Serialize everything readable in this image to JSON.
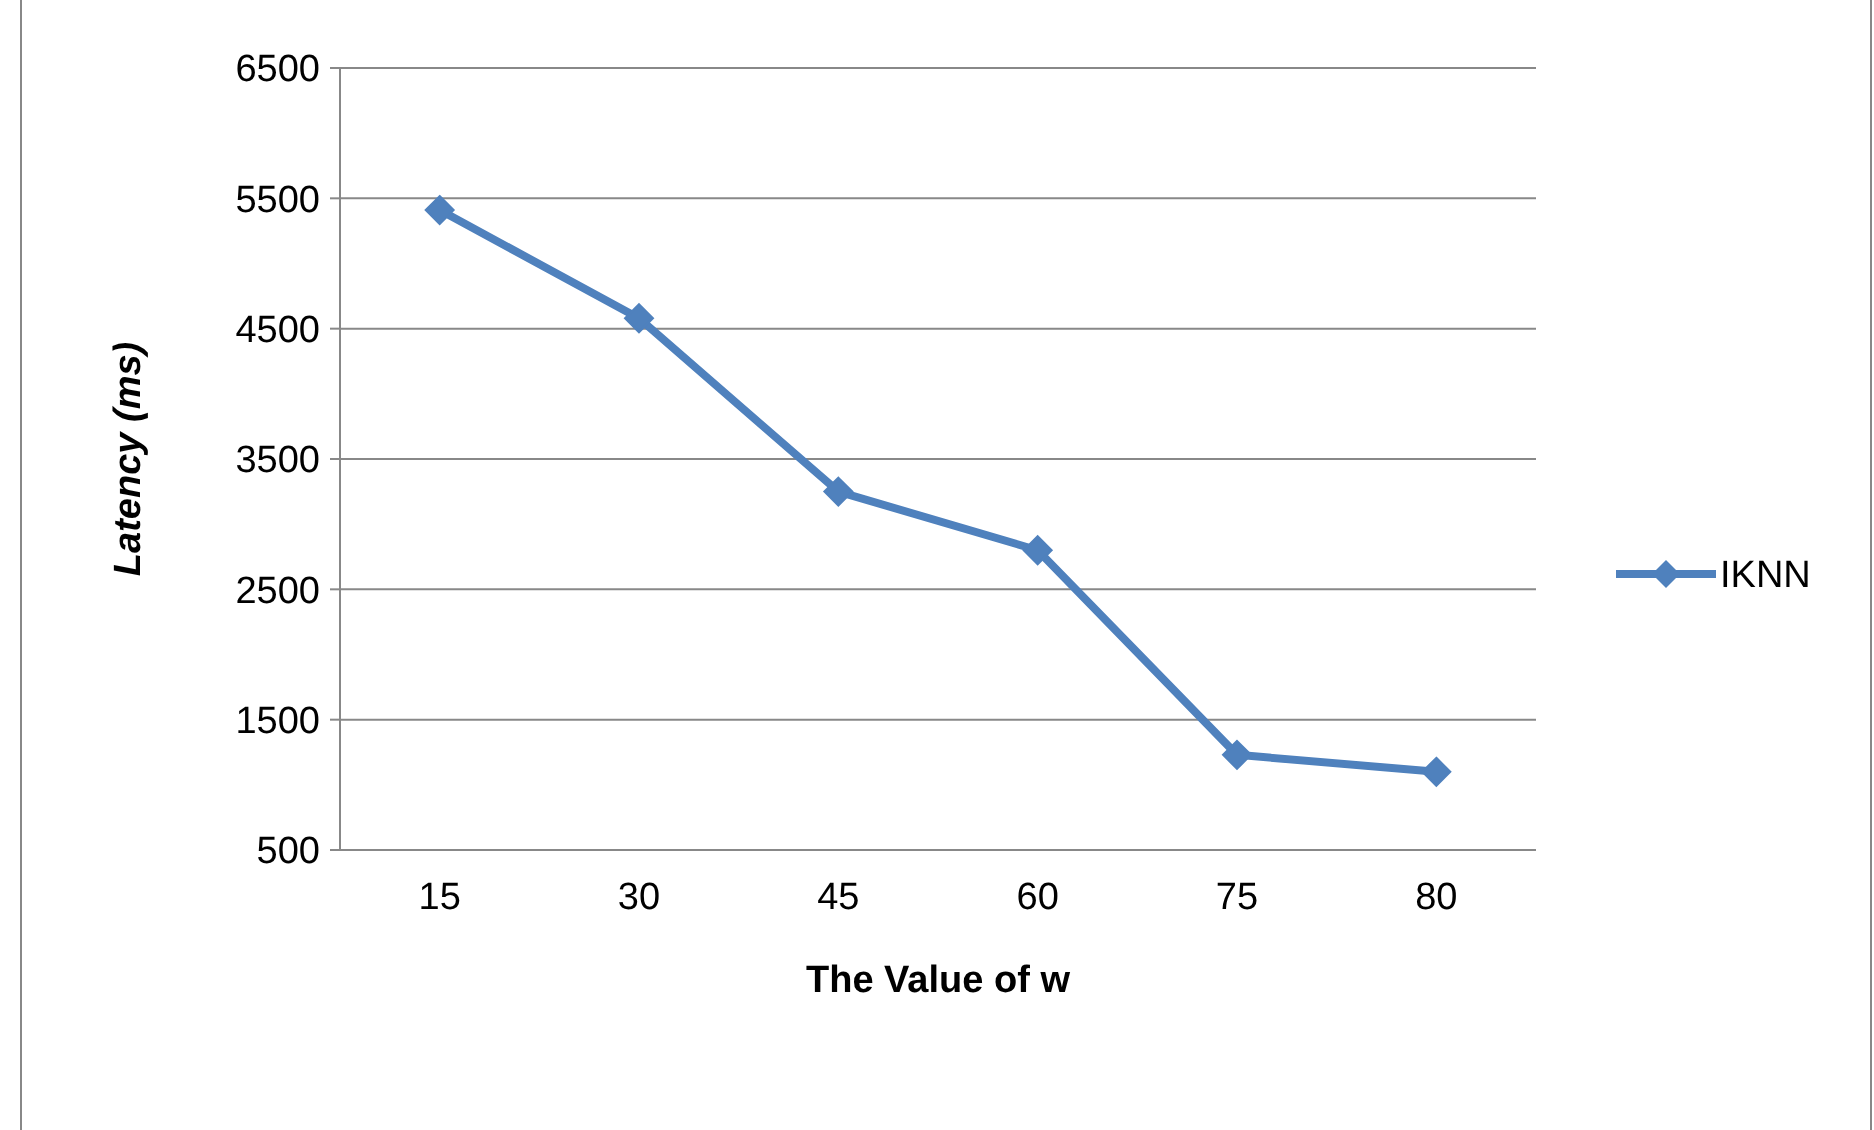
{
  "chart_data": {
    "type": "line",
    "xlabel": "The Value of w",
    "ylabel": "Latency (ms)",
    "categories": [
      "15",
      "30",
      "45",
      "60",
      "75",
      "80"
    ],
    "series": [
      {
        "name": "IKNN",
        "color": "#4f81bd",
        "values": [
          5410,
          4580,
          3250,
          2800,
          1230,
          1100
        ]
      }
    ],
    "ylim": [
      500,
      6500
    ],
    "yticks": [
      500,
      1500,
      2500,
      3500,
      4500,
      5500,
      6500
    ],
    "grid": "y",
    "legend": "right",
    "marker": "diamond",
    "line_style": "solid"
  }
}
